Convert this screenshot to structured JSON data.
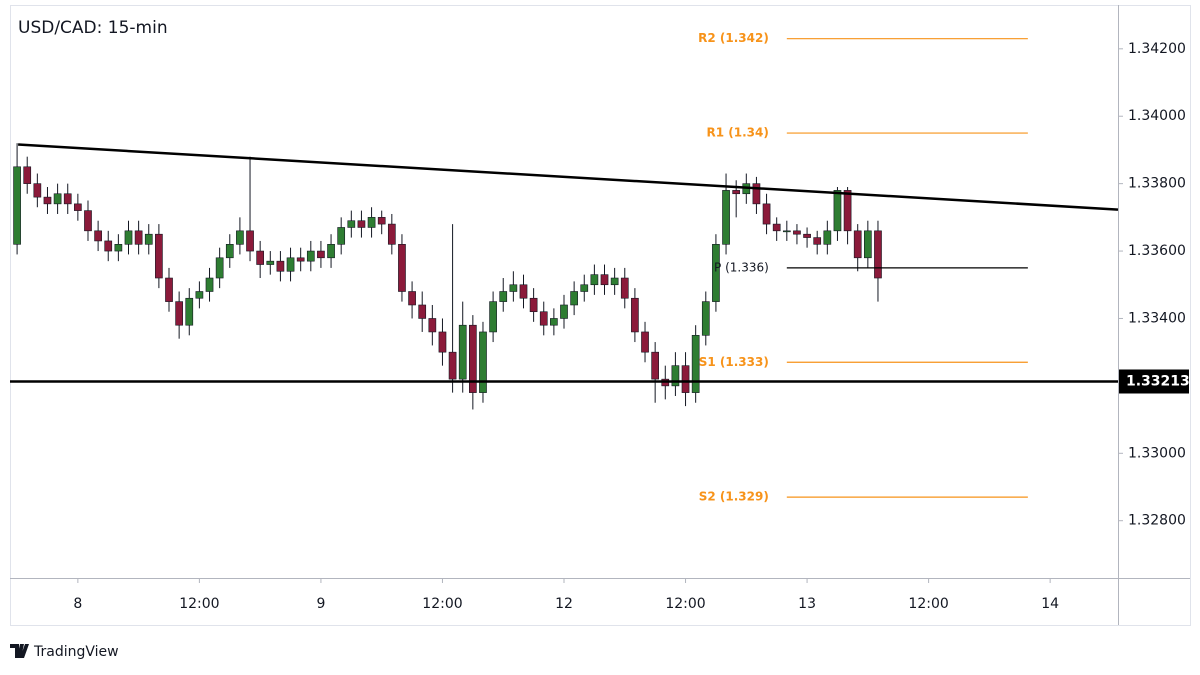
{
  "chart_data": {
    "type": "candlestick",
    "title": "USD/CAD: 15-min",
    "x": [
      -6,
      -5,
      -4,
      -3,
      -2,
      -1,
      0,
      1,
      2,
      3,
      4,
      5,
      6,
      7,
      8,
      9,
      10,
      11,
      12,
      13,
      14,
      15,
      16,
      17,
      18,
      19,
      20,
      21,
      22,
      23,
      24,
      25,
      26,
      27,
      28,
      29,
      30,
      31,
      32,
      33,
      34,
      35,
      36,
      37,
      38,
      39,
      40,
      41,
      42,
      43,
      44,
      45,
      46,
      47,
      48,
      49,
      50,
      51,
      52,
      53,
      54,
      55,
      56,
      57,
      58,
      59,
      60,
      61,
      62,
      63,
      64,
      65,
      66,
      67,
      68,
      69,
      70,
      71,
      72,
      73,
      74,
      75,
      76,
      77,
      78,
      79
    ],
    "open": [
      1.3362,
      1.3385,
      1.338,
      1.3376,
      1.3374,
      1.3377,
      1.3374,
      1.3372,
      1.3366,
      1.3363,
      1.336,
      1.3362,
      1.3366,
      1.3362,
      1.3365,
      1.3352,
      1.3345,
      1.3338,
      1.3346,
      1.3348,
      1.3352,
      1.3358,
      1.3362,
      1.3366,
      1.336,
      1.3356,
      1.3357,
      1.3354,
      1.3358,
      1.3357,
      1.336,
      1.3358,
      1.3362,
      1.3367,
      1.3369,
      1.3367,
      1.337,
      1.3368,
      1.3362,
      1.3348,
      1.3344,
      1.334,
      1.3336,
      1.333,
      1.3322,
      1.3338,
      1.3318,
      1.3336,
      1.3345,
      1.3348,
      1.335,
      1.3346,
      1.3342,
      1.3338,
      1.334,
      1.3344,
      1.3348,
      1.335,
      1.3353,
      1.335,
      1.3352,
      1.3346,
      1.3336,
      1.333,
      1.3322,
      1.332,
      1.3326,
      1.3318,
      1.3335,
      1.3345,
      1.3362,
      1.3378,
      1.3377,
      1.338,
      1.3374,
      1.3368,
      1.3366,
      1.3366,
      1.3365,
      1.3364,
      1.3362,
      1.3366,
      1.3378,
      1.3366,
      1.3358,
      1.3366
    ],
    "high": [
      1.3392,
      1.3388,
      1.3383,
      1.3379,
      1.338,
      1.338,
      1.3377,
      1.3375,
      1.3369,
      1.3366,
      1.3365,
      1.3369,
      1.3369,
      1.3368,
      1.3368,
      1.3355,
      1.3348,
      1.3349,
      1.3351,
      1.3355,
      1.3361,
      1.3365,
      1.337,
      1.3388,
      1.3363,
      1.336,
      1.336,
      1.3361,
      1.3361,
      1.3363,
      1.3363,
      1.3365,
      1.337,
      1.3372,
      1.3372,
      1.3373,
      1.3372,
      1.3371,
      1.3365,
      1.3351,
      1.3348,
      1.3344,
      1.334,
      1.3368,
      1.3345,
      1.3341,
      1.3339,
      1.3348,
      1.3352,
      1.3354,
      1.3353,
      1.3349,
      1.3345,
      1.3343,
      1.3347,
      1.3351,
      1.3353,
      1.3356,
      1.3356,
      1.3355,
      1.3355,
      1.3349,
      1.3339,
      1.3333,
      1.3326,
      1.333,
      1.333,
      1.3338,
      1.3348,
      1.3365,
      1.3383,
      1.3381,
      1.3383,
      1.3382,
      1.3377,
      1.337,
      1.3369,
      1.3368,
      1.3367,
      1.3366,
      1.3369,
      1.3379,
      1.3379,
      1.3368,
      1.3369,
      1.3369
    ],
    "low": [
      1.3359,
      1.3377,
      1.3373,
      1.3371,
      1.3371,
      1.3371,
      1.3369,
      1.3363,
      1.336,
      1.3357,
      1.3357,
      1.3359,
      1.3359,
      1.3359,
      1.3349,
      1.3342,
      1.3334,
      1.3335,
      1.3343,
      1.3345,
      1.3349,
      1.3355,
      1.3359,
      1.3357,
      1.3352,
      1.3353,
      1.3351,
      1.3351,
      1.3354,
      1.3354,
      1.3355,
      1.3355,
      1.3359,
      1.3364,
      1.3364,
      1.3364,
      1.3365,
      1.3359,
      1.3345,
      1.334,
      1.3336,
      1.3332,
      1.3326,
      1.3318,
      1.3318,
      1.3313,
      1.3315,
      1.3333,
      1.3342,
      1.3345,
      1.3343,
      1.3339,
      1.3335,
      1.3335,
      1.3337,
      1.3341,
      1.3345,
      1.3347,
      1.3347,
      1.3347,
      1.3343,
      1.3333,
      1.3327,
      1.3315,
      1.3316,
      1.3317,
      1.3314,
      1.3315,
      1.3332,
      1.3342,
      1.3359,
      1.337,
      1.3374,
      1.3371,
      1.3365,
      1.3363,
      1.3363,
      1.3362,
      1.3361,
      1.3359,
      1.3359,
      1.3363,
      1.3362,
      1.3354,
      1.3355,
      1.3345
    ],
    "close": [
      1.3385,
      1.338,
      1.3376,
      1.3374,
      1.3377,
      1.3374,
      1.3372,
      1.3366,
      1.3363,
      1.336,
      1.3362,
      1.3366,
      1.3362,
      1.3365,
      1.3352,
      1.3345,
      1.3338,
      1.3346,
      1.3348,
      1.3352,
      1.3358,
      1.3362,
      1.3366,
      1.336,
      1.3356,
      1.3357,
      1.3354,
      1.3358,
      1.3357,
      1.336,
      1.3358,
      1.3362,
      1.3367,
      1.3369,
      1.3367,
      1.337,
      1.3368,
      1.3362,
      1.3348,
      1.3344,
      1.334,
      1.3336,
      1.333,
      1.3322,
      1.3338,
      1.3318,
      1.3336,
      1.3345,
      1.3348,
      1.335,
      1.3346,
      1.3342,
      1.3338,
      1.334,
      1.3344,
      1.3348,
      1.335,
      1.3353,
      1.335,
      1.3352,
      1.3346,
      1.3336,
      1.333,
      1.3322,
      1.332,
      1.3326,
      1.3318,
      1.3335,
      1.3345,
      1.3362,
      1.3378,
      1.3377,
      1.338,
      1.3374,
      1.3368,
      1.3366,
      1.3366,
      1.3365,
      1.3364,
      1.3362,
      1.3366,
      1.3378,
      1.3366,
      1.3358,
      1.3366,
      1.3352
    ],
    "up_color": "#2e7d32",
    "down_color": "#8b1a3a",
    "xlim": [
      -6.7,
      102.7
    ],
    "ylim": [
      1.3263,
      1.3433
    ],
    "xticks": [
      {
        "value": 0,
        "label": "8"
      },
      {
        "value": 12,
        "label": "12:00"
      },
      {
        "value": 24,
        "label": "9"
      },
      {
        "value": 36,
        "label": "12:00"
      },
      {
        "value": 48,
        "label": "12"
      },
      {
        "value": 60,
        "label": "12:00"
      },
      {
        "value": 72,
        "label": "13"
      },
      {
        "value": 84,
        "label": "12:00"
      },
      {
        "value": 96,
        "label": "14"
      }
    ],
    "yticks": [
      {
        "value": 1.328,
        "label": "1.32800"
      },
      {
        "value": 1.33,
        "label": "1.33000"
      },
      {
        "value": 1.334,
        "label": "1.33400"
      },
      {
        "value": 1.336,
        "label": "1.33600"
      },
      {
        "value": 1.338,
        "label": "1.33800"
      },
      {
        "value": 1.34,
        "label": "1.34000"
      },
      {
        "value": 1.342,
        "label": "1.34200"
      }
    ],
    "levels": [
      {
        "label": "R2 (1.342)",
        "value": 1.3423,
        "color": "#f7931a"
      },
      {
        "label": "R1 (1.34)",
        "value": 1.3395,
        "color": "#f7931a"
      },
      {
        "label": "P (1.336)",
        "value": 1.3355,
        "color": "#000000"
      },
      {
        "label": "S1 (1.333)",
        "value": 1.3327,
        "color": "#f7931a"
      },
      {
        "label": "S2 (1.329)",
        "value": 1.3287,
        "color": "#f7931a"
      }
    ],
    "levels_x": [
      70,
      93.8
    ],
    "trendline": {
      "x": [
        -5.9,
        102.7
      ],
      "y": [
        1.33916,
        1.33723
      ]
    },
    "support": 1.33213
  },
  "brand": "TradingView"
}
